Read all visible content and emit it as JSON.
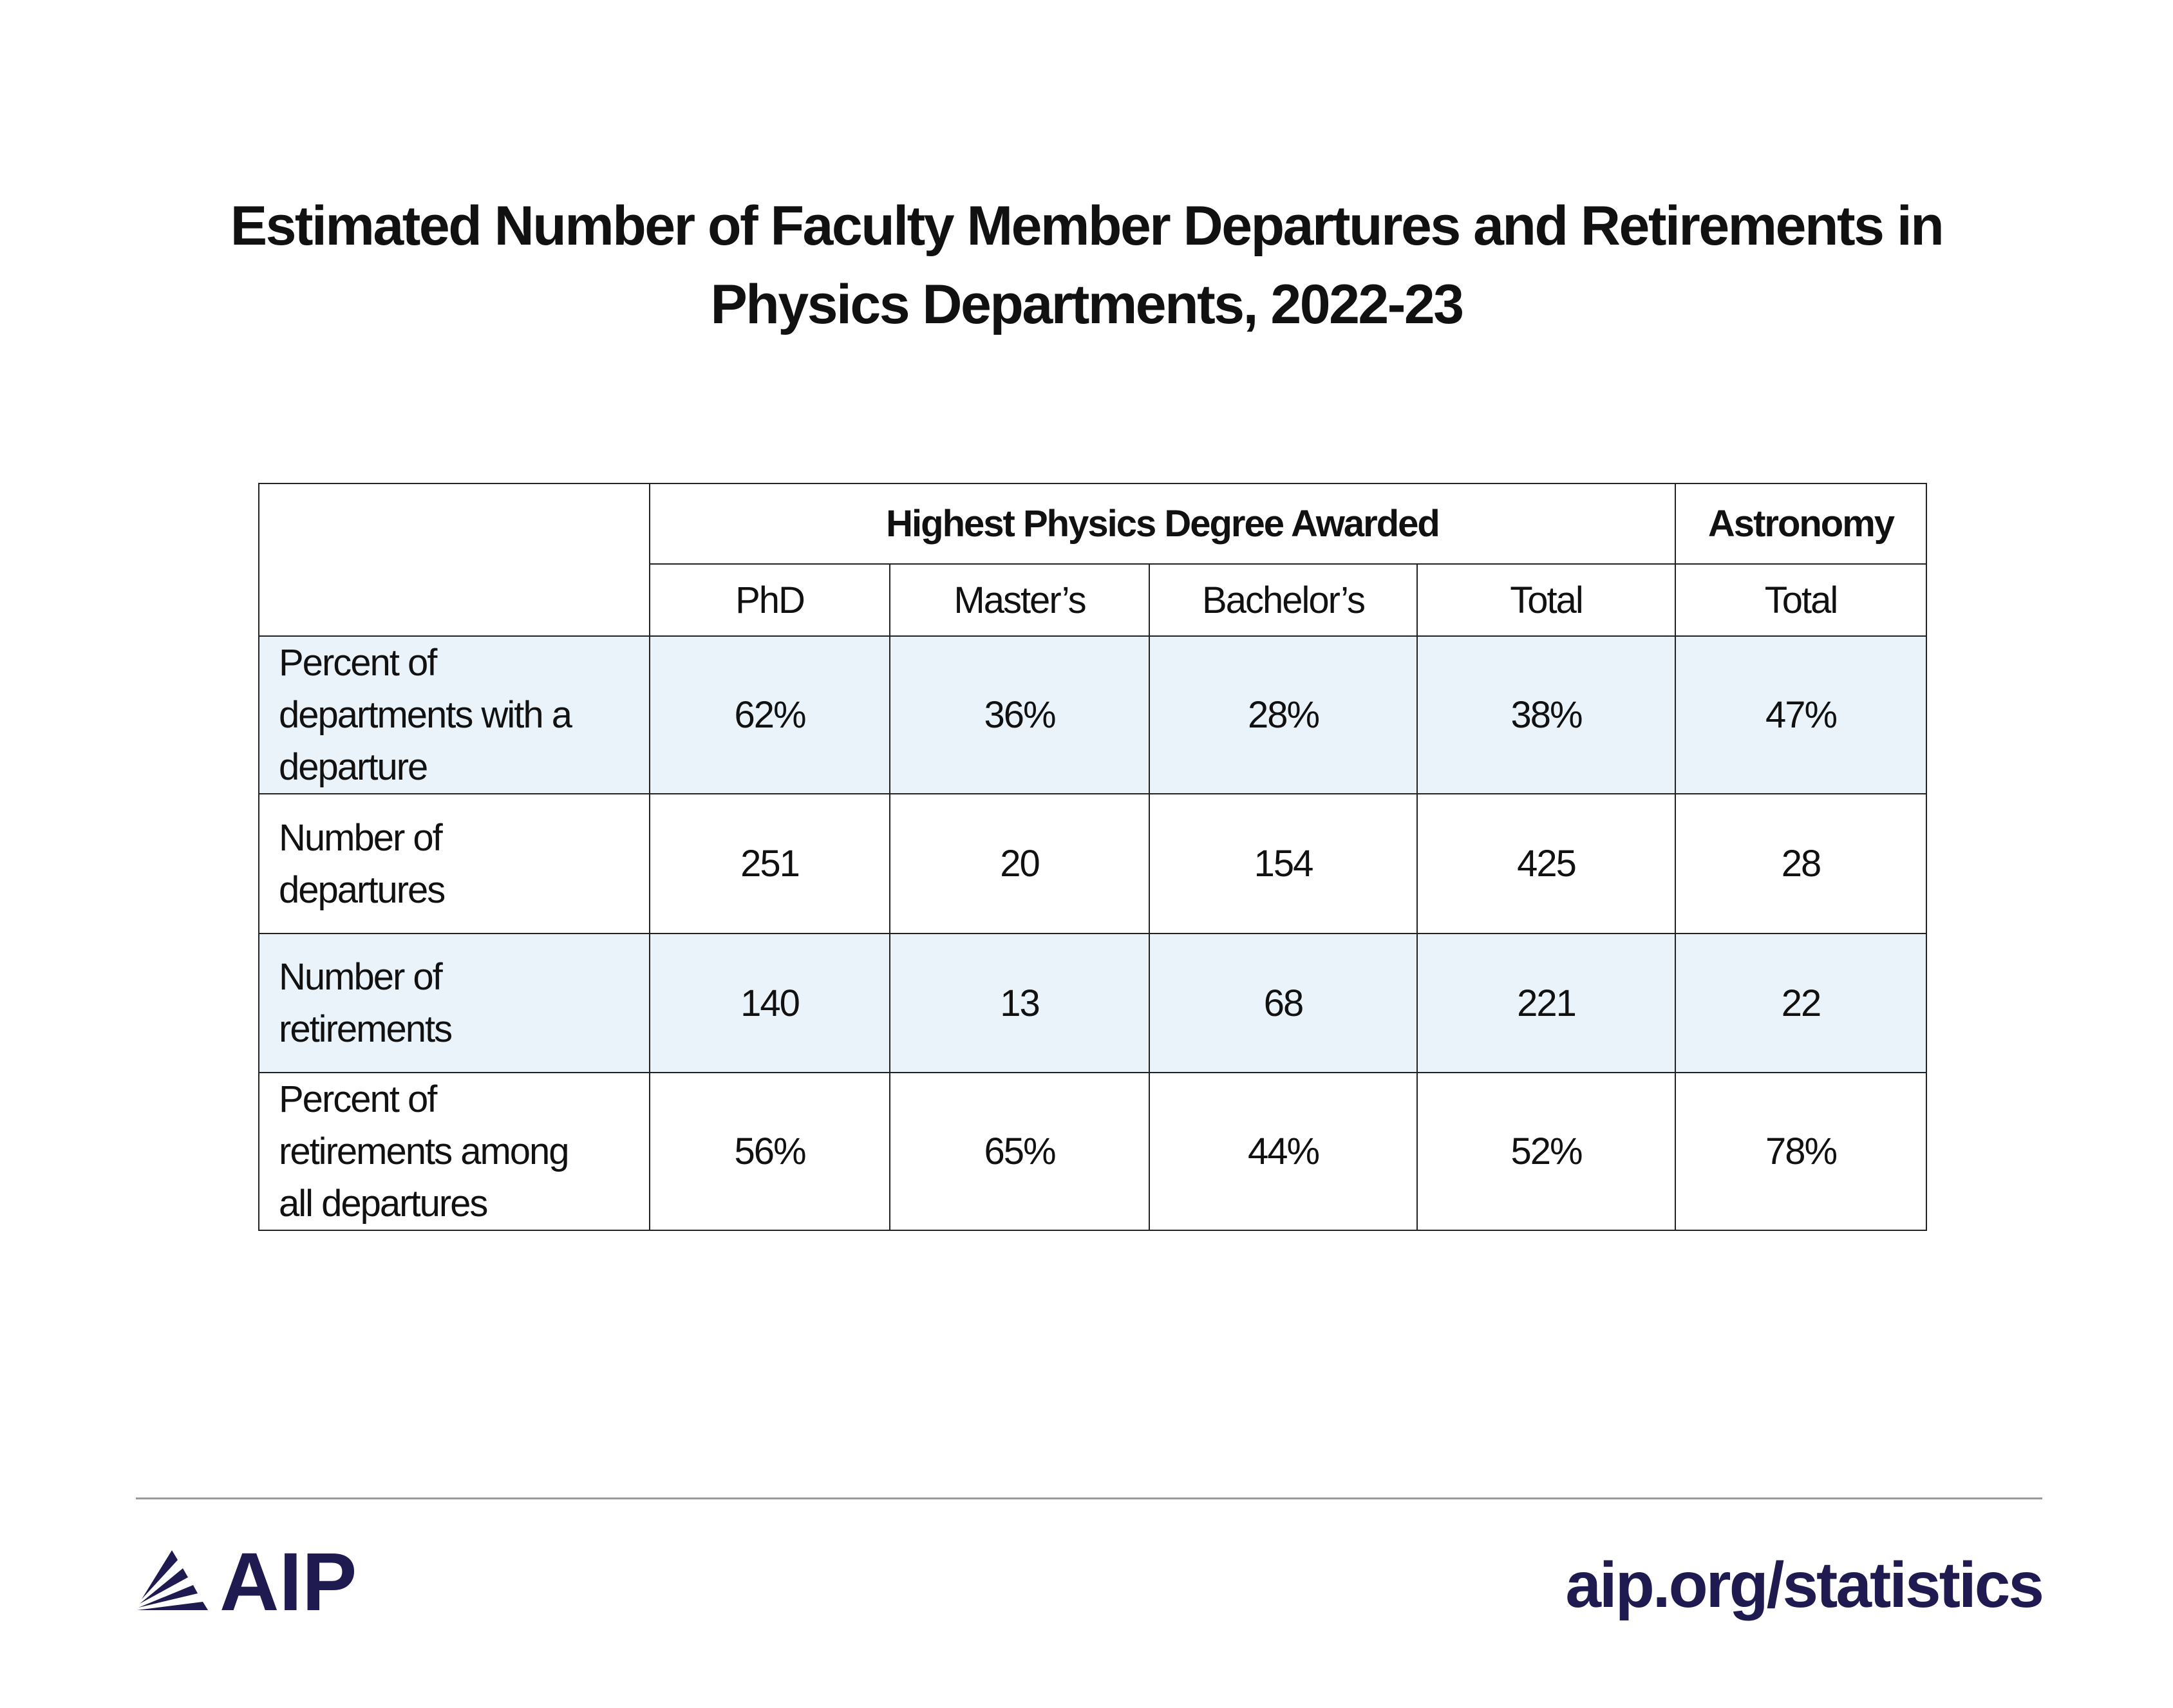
{
  "chart_data": {
    "type": "table",
    "title_lines": [
      "Estimated Number of Faculty Member Departures and Retirements in",
      "Physics Departments, 2022-23"
    ],
    "group_headers": [
      "Highest Physics Degree Awarded",
      "Astronomy"
    ],
    "columns": [
      "PhD",
      "Master’s",
      "Bachelor’s",
      "Total",
      "Total"
    ],
    "rows": [
      {
        "label": "Percent of departments with a departure",
        "label_lines": [
          "Percent of",
          "departments with a",
          "departure"
        ],
        "values": [
          "62%",
          "36%",
          "28%",
          "38%",
          "47%"
        ]
      },
      {
        "label": "Number of departures",
        "label_lines": [
          "Number of",
          "departures"
        ],
        "values": [
          "251",
          "20",
          "154",
          "425",
          "28"
        ]
      },
      {
        "label": "Number of retirements",
        "label_lines": [
          "Number of",
          "retirements"
        ],
        "values": [
          "140",
          "13",
          "68",
          "221",
          "22"
        ]
      },
      {
        "label": "Percent of retirements among all departures",
        "label_lines": [
          "Percent of",
          "retirements among",
          "all departures"
        ],
        "values": [
          "56%",
          "65%",
          "44%",
          "52%",
          "78%"
        ]
      }
    ]
  },
  "footer": {
    "logo_text": "AIP",
    "url": "aip.org/statistics"
  },
  "colors": {
    "brand": "#1f1a4f",
    "row_shade": "#ebf3fa",
    "border": "#222222"
  }
}
